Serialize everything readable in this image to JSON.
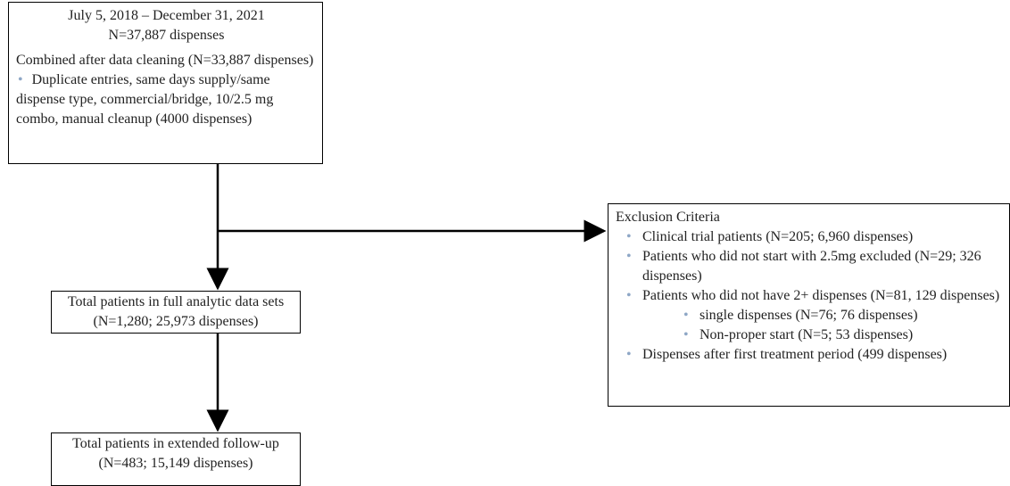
{
  "source": {
    "period": "July 5, 2018 – December 31, 2021",
    "count": "N=37,887 dispenses",
    "cleaning": "Combined after data cleaning (N=33,887 dispenses)",
    "cleaning_items": [
      "Duplicate entries, same days supply/same dispense type, commercial/bridge, 10/2.5 mg combo, manual cleanup (4000 dispenses)"
    ]
  },
  "analytic": {
    "title": "Total patients in full analytic data sets",
    "count": "(N=1,280; 25,973 dispenses)"
  },
  "extended": {
    "title": "Total patients in extended follow-up",
    "count": "(N=483; 15,149 dispenses)"
  },
  "exclusion": {
    "title": "Exclusion Criteria",
    "items": [
      {
        "text": "Clinical trial patients (N=205; 6,960 dispenses)"
      },
      {
        "text": "Patients who did not start with 2.5mg excluded (N=29; 326 dispenses)"
      },
      {
        "text": "Patients who did not have 2+ dispenses (N=81, 129 dispenses)",
        "subitems": [
          "single dispenses (N=76; 76 dispenses)",
          "Non-proper start  (N=5; 53 dispenses)"
        ]
      },
      {
        "text": "Dispenses after first treatment period (499 dispenses)"
      }
    ]
  }
}
